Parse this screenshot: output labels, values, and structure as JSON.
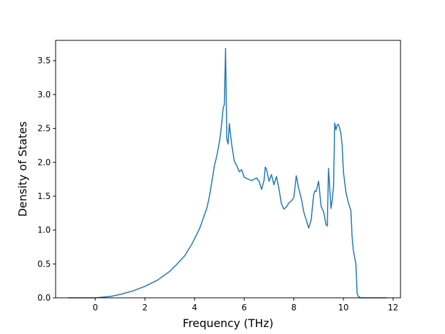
{
  "chart_data": {
    "type": "line",
    "title": "",
    "xlabel": "Frequency (THz)",
    "ylabel": "Density of States",
    "xlim": [
      -1.6,
      12.3
    ],
    "ylim": [
      0.0,
      3.8
    ],
    "xticks": [
      0,
      2,
      4,
      6,
      8,
      10,
      12
    ],
    "yticks": [
      0.0,
      0.5,
      1.0,
      1.5,
      2.0,
      2.5,
      3.0,
      3.5
    ],
    "xtick_labels": [
      "0",
      "2",
      "4",
      "6",
      "8",
      "10",
      "12"
    ],
    "ytick_labels": [
      "0.0",
      "0.5",
      "1.0",
      "1.5",
      "2.0",
      "2.5",
      "3.0",
      "3.5"
    ],
    "grid": false,
    "legend": false,
    "line_color": "#1f77b4",
    "series": [
      {
        "x": [
          -1.1,
          -0.5,
          0.0,
          0.3,
          0.6,
          1.0,
          1.5,
          2.0,
          2.5,
          3.0,
          3.3,
          3.6,
          3.9,
          4.2,
          4.5,
          4.6,
          4.7,
          4.8,
          4.9,
          5.0,
          5.05,
          5.1,
          5.15,
          5.2,
          5.25,
          5.3,
          5.35,
          5.4,
          5.5,
          5.6,
          5.7,
          5.8,
          5.9,
          6.0,
          6.1,
          6.3,
          6.5,
          6.6,
          6.7,
          6.8,
          6.85,
          6.9,
          7.0,
          7.05,
          7.1,
          7.2,
          7.3,
          7.4,
          7.5,
          7.6,
          7.7,
          7.8,
          7.9,
          8.0,
          8.1,
          8.2,
          8.3,
          8.4,
          8.5,
          8.6,
          8.7,
          8.8,
          8.85,
          8.9,
          9.0,
          9.1,
          9.2,
          9.3,
          9.35,
          9.4,
          9.5,
          9.55,
          9.6,
          9.65,
          9.7,
          9.75,
          9.8,
          9.85,
          9.9,
          9.95,
          10.0,
          10.1,
          10.2,
          10.3,
          10.35,
          10.4,
          10.5,
          10.55,
          10.6,
          10.7,
          11.0,
          11.5,
          11.75
        ],
        "y": [
          0.0,
          0.0,
          0.0,
          0.01,
          0.02,
          0.05,
          0.1,
          0.17,
          0.26,
          0.39,
          0.5,
          0.62,
          0.8,
          1.02,
          1.33,
          1.5,
          1.72,
          1.95,
          2.1,
          2.3,
          2.43,
          2.6,
          2.8,
          2.85,
          3.68,
          2.35,
          2.27,
          2.57,
          2.25,
          2.02,
          1.95,
          1.86,
          1.89,
          1.78,
          1.76,
          1.73,
          1.77,
          1.72,
          1.6,
          1.73,
          1.93,
          1.9,
          1.72,
          1.77,
          1.82,
          1.67,
          1.79,
          1.61,
          1.39,
          1.31,
          1.34,
          1.4,
          1.43,
          1.48,
          1.8,
          1.61,
          1.47,
          1.27,
          1.15,
          1.03,
          1.15,
          1.52,
          1.58,
          1.57,
          1.72,
          1.35,
          1.27,
          1.08,
          1.06,
          1.91,
          1.32,
          1.45,
          1.65,
          2.58,
          2.48,
          2.55,
          2.56,
          2.5,
          2.42,
          2.25,
          1.86,
          1.56,
          1.4,
          1.29,
          0.9,
          0.7,
          0.5,
          0.07,
          0.02,
          0.0,
          0.0,
          0.0,
          0.0
        ]
      }
    ]
  }
}
